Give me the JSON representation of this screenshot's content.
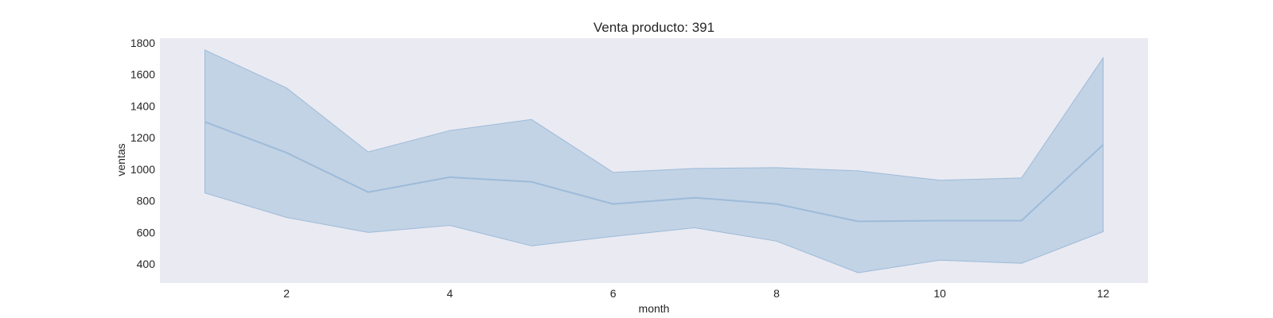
{
  "chart_data": {
    "type": "line",
    "title": "Venta producto: 391",
    "xlabel": "month",
    "ylabel": "ventas",
    "xlim": [
      0.45,
      12.55
    ],
    "ylim": [
      280,
      1830
    ],
    "x_ticks": [
      2,
      4,
      6,
      8,
      10,
      12
    ],
    "y_ticks": [
      400,
      600,
      800,
      1000,
      1200,
      1400,
      1600,
      1800
    ],
    "grid": false,
    "colors": {
      "line": "#9dbbd9",
      "band": "#c2d3e5",
      "background": "#eaeaf2"
    },
    "series": [
      {
        "x": [
          1,
          2,
          3,
          4,
          5,
          6,
          7,
          8,
          9,
          10,
          11,
          12
        ],
        "values": [
          1300,
          1105,
          855,
          950,
          920,
          780,
          820,
          780,
          670,
          675,
          675,
          1155
        ],
        "lower": [
          850,
          695,
          600,
          645,
          515,
          575,
          630,
          545,
          345,
          425,
          405,
          605
        ],
        "upper": [
          1755,
          1515,
          1110,
          1245,
          1315,
          980,
          1005,
          1010,
          990,
          930,
          945,
          1705
        ]
      }
    ]
  }
}
